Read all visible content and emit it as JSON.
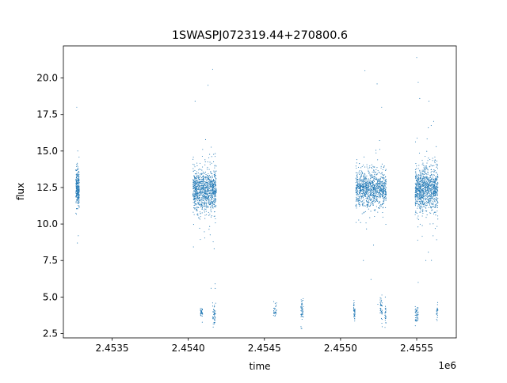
{
  "chart_data": {
    "type": "scatter",
    "title": "1SWASPJ072319.44+270800.6",
    "xlabel": "time",
    "ylabel": "flux",
    "x_offset_label": "1e6",
    "xlim": [
      2453180,
      2455760
    ],
    "ylim": [
      2.2,
      22.2
    ],
    "x_ticks": [
      2.4535,
      2.454,
      2.4545,
      2.455,
      2.4555
    ],
    "x_tick_labels": [
      "2.4535",
      "2.4540",
      "2.4545",
      "2.4550",
      "2.4555"
    ],
    "y_ticks": [
      2.5,
      5.0,
      7.5,
      10.0,
      12.5,
      15.0,
      17.5,
      20.0
    ],
    "y_tick_labels": [
      "2.5",
      "5.0",
      "7.5",
      "10.0",
      "12.5",
      "15.0",
      "17.5",
      "20.0"
    ],
    "grid": false,
    "marker_color": "#1f77b4",
    "groups": [
      {
        "x_range": [
          2453262,
          2453285
        ],
        "center": 12.5,
        "spread": 0.6,
        "n": 260,
        "outliers": [
          [
            2453268,
            18.0
          ],
          [
            2453272,
            8.7
          ],
          [
            2453278,
            9.2
          ]
        ]
      },
      {
        "x_range": [
          2454030,
          2454185
        ],
        "center": 12.3,
        "spread": 0.7,
        "n": 1000,
        "outliers": [
          [
            2454045,
            18.4
          ],
          [
            2454130,
            19.5
          ],
          [
            2454160,
            20.6
          ],
          [
            2454170,
            8.3
          ],
          [
            2454150,
            5.6
          ]
        ]
      },
      {
        "x_range": [
          2454080,
          2454095
        ],
        "center": 3.95,
        "spread": 0.15,
        "n": 35,
        "outliers": []
      },
      {
        "x_range": [
          2454160,
          2454180
        ],
        "center": 3.8,
        "spread": 0.4,
        "n": 45,
        "outliers": []
      },
      {
        "x_range": [
          2454560,
          2454580
        ],
        "center": 4.0,
        "spread": 0.2,
        "n": 30,
        "outliers": []
      },
      {
        "x_range": [
          2454740,
          2454755
        ],
        "center": 4.1,
        "spread": 0.4,
        "n": 50,
        "outliers": []
      },
      {
        "x_range": [
          2455085,
          2455095
        ],
        "center": 4.1,
        "spread": 0.4,
        "n": 40,
        "outliers": []
      },
      {
        "x_range": [
          2455100,
          2455300
        ],
        "center": 12.4,
        "spread": 0.6,
        "n": 1000,
        "outliers": [
          [
            2455160,
            20.5
          ],
          [
            2455240,
            19.6
          ],
          [
            2455270,
            18.0
          ],
          [
            2455150,
            7.5
          ],
          [
            2455200,
            6.2
          ],
          [
            2455245,
            4.5
          ]
        ]
      },
      {
        "x_range": [
          2455260,
          2455275
        ],
        "center": 4.2,
        "spread": 0.4,
        "n": 40,
        "outliers": []
      },
      {
        "x_range": [
          2455290,
          2455300
        ],
        "center": 3.7,
        "spread": 0.3,
        "n": 25,
        "outliers": []
      },
      {
        "x_range": [
          2455490,
          2455640
        ],
        "center": 12.4,
        "spread": 0.7,
        "n": 1000,
        "outliers": [
          [
            2455500,
            21.4
          ],
          [
            2455510,
            19.7
          ],
          [
            2455520,
            18.6
          ],
          [
            2455580,
            18.4
          ],
          [
            2455560,
            7.5
          ],
          [
            2455510,
            6.0
          ]
        ]
      },
      {
        "x_range": [
          2455490,
          2455510
        ],
        "center": 3.8,
        "spread": 0.3,
        "n": 45,
        "outliers": []
      },
      {
        "x_range": [
          2455630,
          2455640
        ],
        "center": 4.0,
        "spread": 0.25,
        "n": 25,
        "outliers": []
      }
    ]
  }
}
